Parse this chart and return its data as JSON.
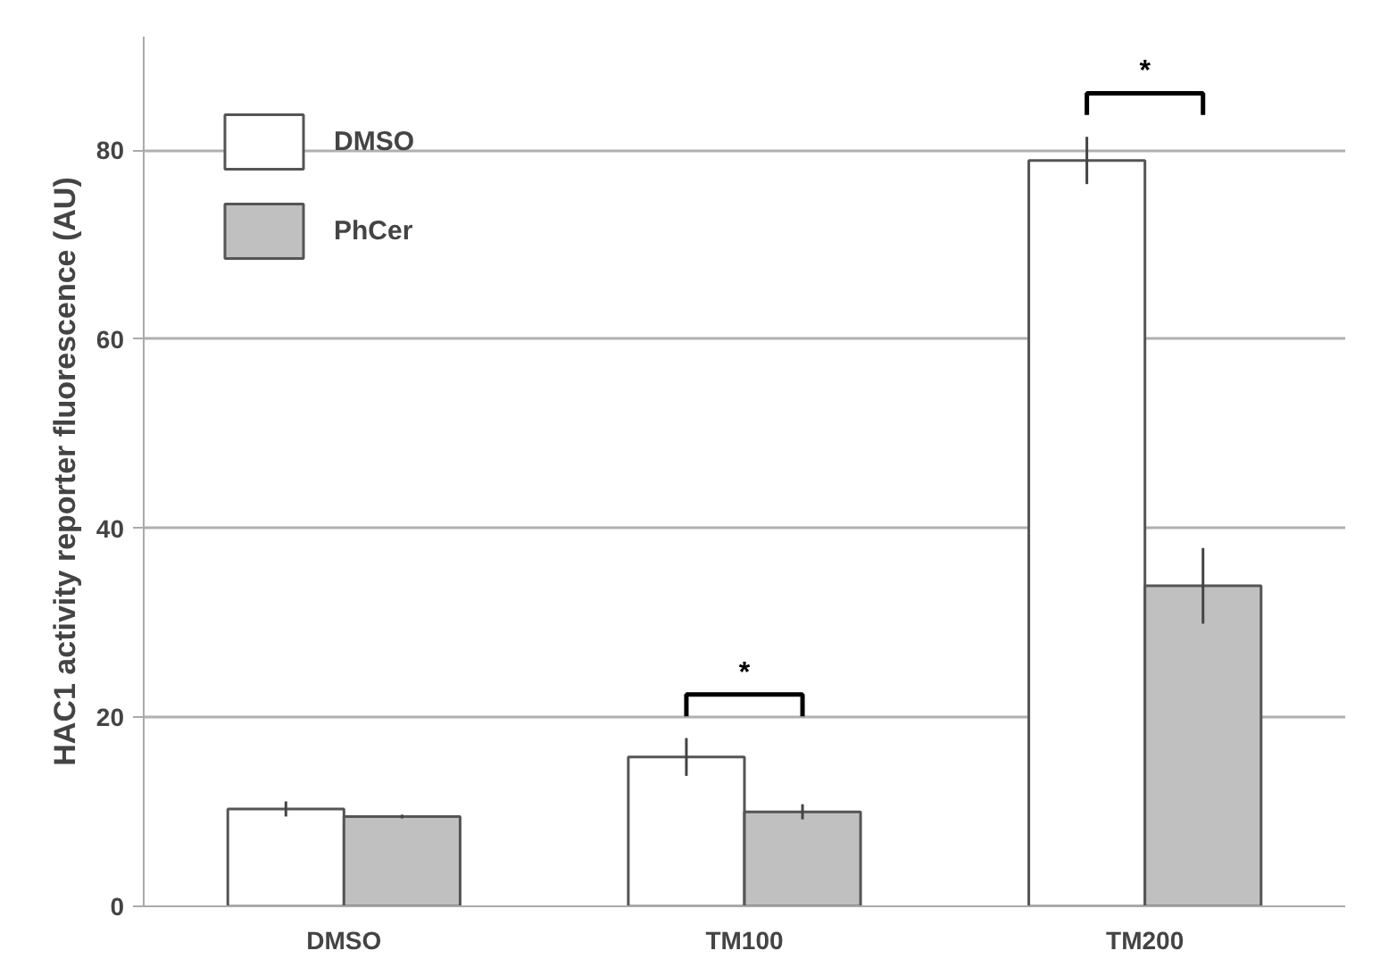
{
  "chart_data": {
    "type": "bar",
    "ylabel": "HAC1 activity reporter fluorescence (AU)",
    "categories": [
      "DMSO",
      "TM100",
      "TM200"
    ],
    "series": [
      {
        "name": "DMSO",
        "color": "#ffffff",
        "values": [
          10.3,
          15.8,
          78.9
        ],
        "errors": [
          0.8,
          2,
          2.5
        ]
      },
      {
        "name": "PhCer",
        "color": "#c0c0c0",
        "values": [
          9.5,
          10.0,
          33.9
        ],
        "errors": [
          0.2,
          0.8,
          4
        ]
      }
    ],
    "ylim": [
      0,
      92
    ],
    "yticks": [
      0,
      20,
      40,
      60,
      80
    ],
    "grid": "y",
    "legend": "top left",
    "annotations": [
      "*",
      "*"
    ]
  }
}
